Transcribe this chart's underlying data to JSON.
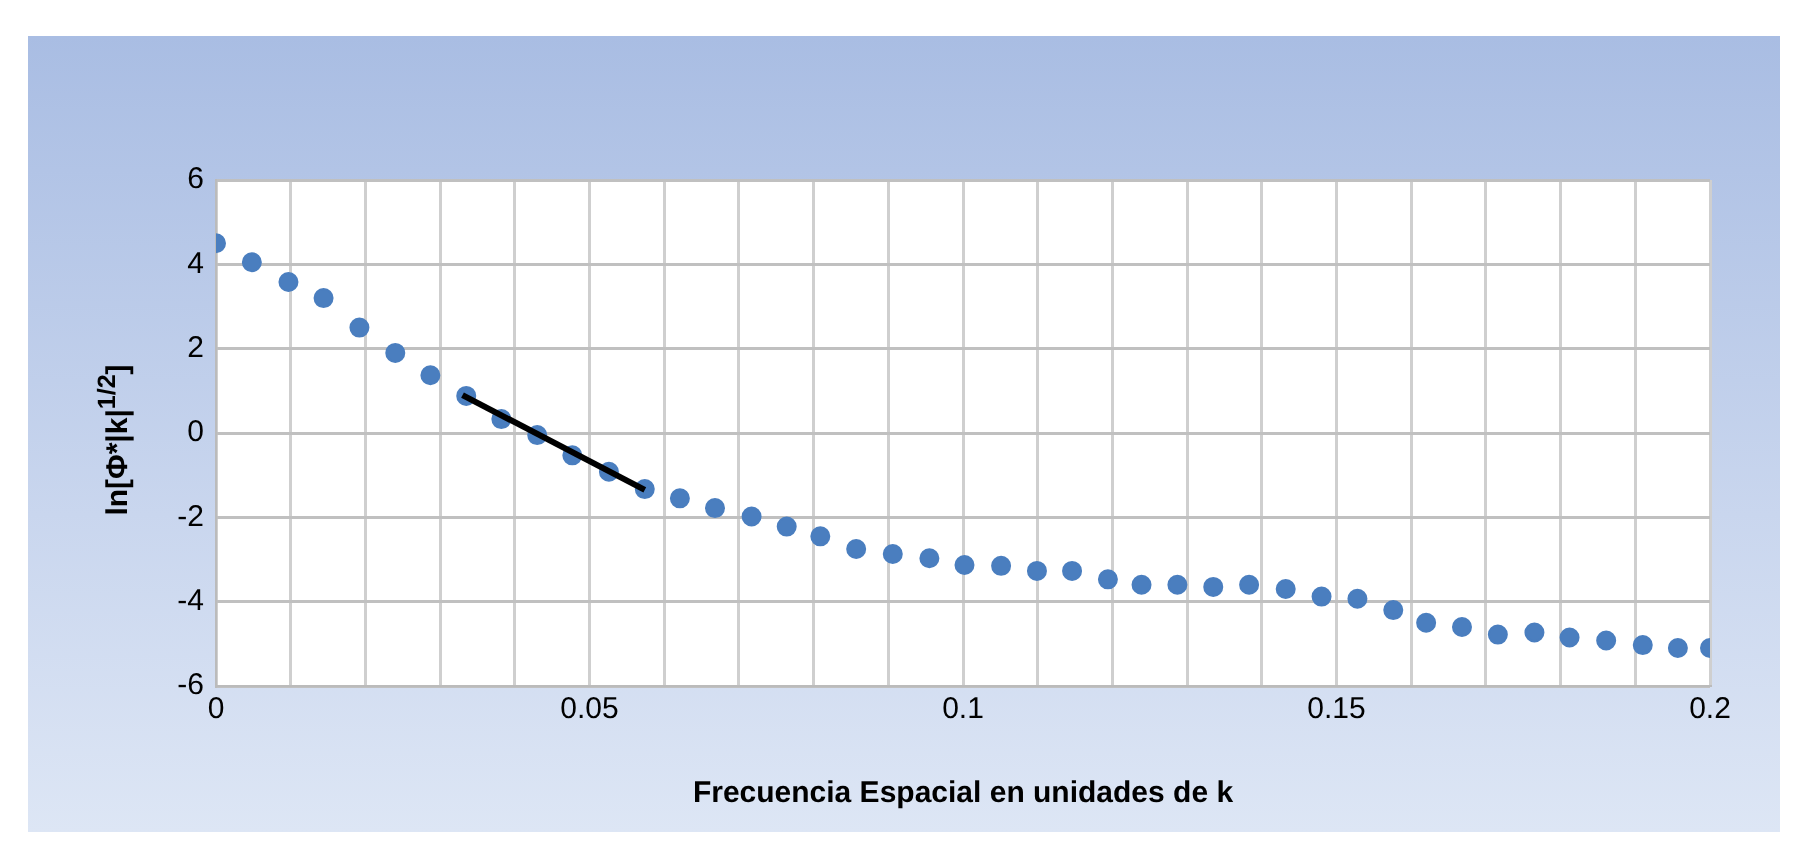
{
  "chart_data": {
    "type": "scatter",
    "xlabel": "Frecuencia Espacial en unidades de k",
    "ylabel": "ln[Φ*|k|$^{1/2}$]",
    "series": [
      {
        "marker": "circle",
        "color": "#4a7ebf",
        "x": [
          0,
          0.0048,
          0.0097,
          0.0144,
          0.0192,
          0.024,
          0.0287,
          0.0335,
          0.0382,
          0.043,
          0.0477,
          0.0526,
          0.0574,
          0.0621,
          0.0668,
          0.0717,
          0.0764,
          0.0809,
          0.0857,
          0.0906,
          0.0955,
          0.1002,
          0.1051,
          0.1099,
          0.1146,
          0.1194,
          0.1239,
          0.1287,
          0.1335,
          0.1383,
          0.1432,
          0.148,
          0.1528,
          0.1576,
          0.162,
          0.1668,
          0.1716,
          0.1765,
          0.1812,
          0.1861,
          0.191,
          0.1957,
          0.2
        ],
        "values": [
          4.5,
          4.05,
          3.58,
          3.2,
          2.5,
          1.9,
          1.37,
          0.88,
          0.33,
          -0.05,
          -0.53,
          -0.92,
          -1.33,
          -1.55,
          -1.78,
          -1.98,
          -2.22,
          -2.45,
          -2.75,
          -2.87,
          -2.97,
          -3.13,
          -3.15,
          -3.27,
          -3.27,
          -3.47,
          -3.6,
          -3.6,
          -3.65,
          -3.6,
          -3.7,
          -3.88,
          -3.93,
          -4.2,
          -4.5,
          -4.6,
          -4.78,
          -4.73,
          -4.85,
          -4.92,
          -5.03,
          -5.1,
          -5.1
        ]
      },
      {
        "type": "line",
        "marker": "none",
        "color": "#000000",
        "x": [
          0.033,
          0.0574
        ],
        "values": [
          0.9,
          -1.35
        ]
      }
    ],
    "xlim": [
      0,
      0.2
    ],
    "xticks": [
      0,
      {
        "value": 0.01,
        "label": null
      },
      {
        "value": 0.02,
        "label": null
      },
      {
        "value": 0.03,
        "label": null
      },
      {
        "value": 0.04,
        "label": null
      },
      0.05,
      {
        "value": 0.06,
        "label": null
      },
      {
        "value": 0.07,
        "label": null
      },
      {
        "value": 0.08,
        "label": null
      },
      {
        "value": 0.09,
        "label": null
      },
      0.1,
      {
        "value": 0.11,
        "label": null
      },
      {
        "value": 0.12,
        "label": null
      },
      {
        "value": 0.13,
        "label": null
      },
      {
        "value": 0.14,
        "label": null
      },
      0.15,
      {
        "value": 0.16,
        "label": null
      },
      {
        "value": 0.17,
        "label": null
      },
      {
        "value": 0.18,
        "label": null
      },
      {
        "value": 0.19,
        "label": null
      },
      0.2
    ],
    "ylim": [
      -6,
      6
    ],
    "yticks": [
      -6,
      -4,
      -2,
      0,
      2,
      4,
      6
    ],
    "grid": true,
    "legend": false,
    "line_style": "solid"
  }
}
